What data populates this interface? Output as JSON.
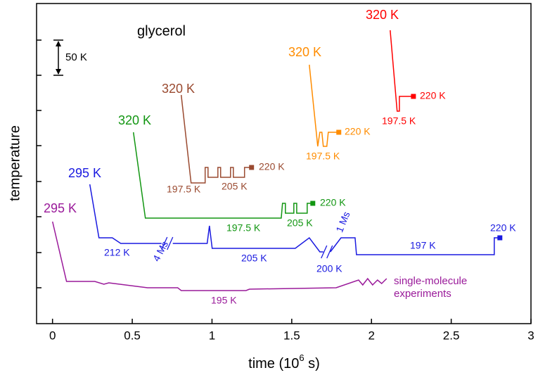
{
  "chart_data": {
    "type": "line",
    "title": "glycerol",
    "xlabel": [
      "time (10",
      "6",
      " s)"
    ],
    "ylabel": "temperature",
    "xlim": [
      -0.1,
      3
    ],
    "xticks": [
      0,
      0.5,
      1,
      1.5,
      2,
      2.5,
      3
    ],
    "ylim": [
      0,
      455
    ],
    "yticks": [
      51,
      101,
      152,
      202,
      253,
      303,
      353,
      403
    ],
    "scale_bar": {
      "value": 50,
      "label": "50 K"
    },
    "series": [
      {
        "color": "#9a1a9a",
        "end_marker": false,
        "x": [
          0,
          0.088,
          0.265,
          0.322,
          0.353,
          0.596,
          0.785,
          0.807,
          1.213,
          1.235,
          1.778,
          1.919,
          1.945,
          1.976,
          2.007,
          2.038,
          2.064,
          2.095
        ],
        "values": [
          145,
          60,
          60,
          56,
          58,
          51,
          51,
          47,
          47,
          49,
          51,
          62,
          55,
          64,
          55,
          62,
          57,
          64
        ],
        "annotations": [
          "295 K",
          "195 K",
          "single-molecule",
          "experiments"
        ]
      },
      {
        "color": "#1a1ae0",
        "end_marker": true,
        "x": [
          0.234,
          0.291,
          0.375,
          0.428,
          0.684,
          0.719,
          0.754,
          0.97,
          0.984,
          1.001,
          1.522,
          1.61,
          1.676,
          1.698,
          1.72,
          1.742,
          1.809,
          1.897,
          1.906,
          2.77,
          2.77,
          2.805
        ],
        "values": [
          198,
          122,
          122,
          114,
          114,
          null,
          114,
          114,
          139,
          107,
          107,
          122,
          102,
          102,
          null,
          102,
          122,
          122,
          98,
          98,
          122,
          122
        ],
        "annotations": [
          "295 K",
          "212 K",
          "4 Ms",
          "205 K",
          "1 Ms",
          "200 K",
          "197 K",
          "220 K"
        ]
      },
      {
        "color": "#129612",
        "end_marker": true,
        "x": [
          0.507,
          0.582,
          1.434,
          1.442,
          1.46,
          1.46,
          1.513,
          1.513,
          1.531,
          1.531,
          1.597,
          1.597,
          1.632
        ],
        "values": [
          272,
          150,
          150,
          171,
          171,
          157,
          157,
          171,
          171,
          157,
          157,
          171,
          171
        ],
        "annotations": [
          "320 K",
          "197.5 K",
          "205 K",
          "220 K"
        ]
      },
      {
        "color": "#9a4a30",
        "end_marker": true,
        "x": [
          0.807,
          0.869,
          0.957,
          0.957,
          0.975,
          0.975,
          1.037,
          1.037,
          1.054,
          1.054,
          1.116,
          1.116,
          1.134,
          1.134,
          1.204,
          1.204,
          1.248
        ],
        "values": [
          325,
          200,
          200,
          222,
          222,
          208,
          208,
          222,
          222,
          208,
          208,
          222,
          222,
          208,
          208,
          222,
          222
        ],
        "annotations": [
          "320 K",
          "197.5 K",
          "205 K",
          "220 K"
        ]
      },
      {
        "color": "#ff8c00",
        "end_marker": true,
        "x": [
          1.61,
          1.663,
          1.676,
          1.689,
          1.698,
          1.72,
          1.729,
          1.795
        ],
        "values": [
          368,
          252,
          272,
          272,
          252,
          252,
          272,
          272
        ],
        "annotations": [
          "320 K",
          "197.5 K",
          "220 K"
        ]
      },
      {
        "color": "#ff0000",
        "end_marker": true,
        "x": [
          2.117,
          2.161,
          2.175,
          2.175,
          2.263
        ],
        "values": [
          417,
          302,
          302,
          323,
          323
        ],
        "annotations": [
          "320 K",
          "197.5 K",
          "220 K"
        ]
      }
    ]
  }
}
